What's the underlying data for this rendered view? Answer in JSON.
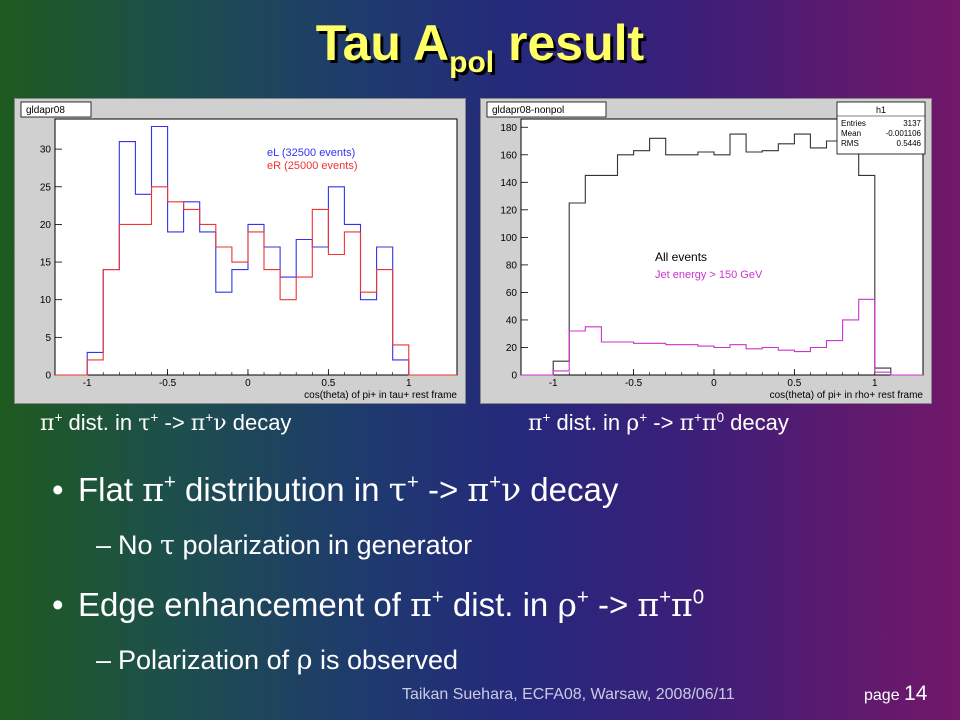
{
  "slide": {
    "title_main": "Tau A",
    "title_sub": "pol",
    "title_end": " result",
    "footer": "Taikan Suehara, ECFA08, Warsaw, 2008/06/11",
    "page_label": "page",
    "page_number": "14"
  },
  "captions": {
    "left": {
      "a": "π",
      "b": "+",
      "c": " dist. in ",
      "d": "τ",
      "e": "+",
      "f": " -> ",
      "g": "π",
      "h": "+",
      "i": "ν",
      "j": " decay"
    },
    "right": {
      "a": "π",
      "b": "+",
      "c": " dist. in ",
      "d": "ρ",
      "e": "+",
      "f": " -> ",
      "g": "π",
      "h": "+",
      "i": "π",
      "j": "0",
      "k": " decay"
    }
  },
  "bullets": [
    {
      "a": "•",
      "b": "Flat ",
      "c": "π",
      "d": "+",
      "e": " distribution in ",
      "f": "τ",
      "g": "+",
      "h": " -> ",
      "i": "π",
      "j": "+",
      "k": "ν",
      "l": " decay"
    },
    {
      "a": "–",
      "b": "No ",
      "c": "τ",
      "d": " polarization in generator"
    },
    {
      "a": "•",
      "b": "Edge enhancement of ",
      "c": "π",
      "d": "+",
      "e": " dist. in ",
      "f": "ρ",
      "g": "+",
      "h": " -> ",
      "i": "π",
      "j": "+",
      "k": "π",
      "l": "0"
    },
    {
      "a": "–",
      "b": "Polarization of ",
      "c": "ρ",
      "d": " is observed"
    }
  ],
  "chart_data": [
    {
      "type": "line",
      "step": true,
      "panel_label": "gldapr08",
      "xlabel": "cos(theta) of pi+ in tau+ rest frame",
      "xlim": [
        -1.2,
        1.3
      ],
      "ylim": [
        0,
        34
      ],
      "xticks": [
        -1,
        -0.5,
        0,
        0.5,
        1
      ],
      "xtick_labels": [
        "-1",
        "-0.5",
        "0",
        "0.5",
        "1"
      ],
      "yticks": [
        0,
        5,
        10,
        15,
        20,
        25,
        30
      ],
      "ytick_labels": [
        "0",
        "5",
        "10",
        "15",
        "20",
        "25",
        "30"
      ],
      "bin_edges": [
        -1.2,
        -1.1,
        -1.0,
        -0.9,
        -0.8,
        -0.7,
        -0.6,
        -0.5,
        -0.4,
        -0.3,
        -0.2,
        -0.1,
        0.0,
        0.1,
        0.2,
        0.3,
        0.4,
        0.5,
        0.6,
        0.7,
        0.8,
        0.9,
        1.0,
        1.1,
        1.2,
        1.3
      ],
      "legend": [
        {
          "label": "eL (32500 events)",
          "color": "#3333ee"
        },
        {
          "label": "eR (25000 events)",
          "color": "#ee3333"
        }
      ],
      "series": [
        {
          "name": "eL (32500 events)",
          "color": "#3333ee",
          "values": [
            0,
            0,
            3,
            14,
            31,
            24,
            33,
            19,
            23,
            19,
            11,
            14,
            20,
            17,
            13,
            18,
            17,
            25,
            20,
            10,
            17,
            2,
            0,
            0,
            0
          ]
        },
        {
          "name": "eR (25000 events)",
          "color": "#ee3333",
          "values": [
            0,
            0,
            2,
            14,
            20,
            20,
            25,
            23,
            22,
            20,
            17,
            15,
            19,
            14,
            10,
            13,
            22,
            16,
            19,
            11,
            14,
            4,
            0,
            0,
            0
          ]
        }
      ]
    },
    {
      "type": "line",
      "step": true,
      "panel_label": "gldapr08-nonpol",
      "xlabel": "cos(theta) of pi+ in rho+ rest frame",
      "xlim": [
        -1.2,
        1.3
      ],
      "ylim": [
        0,
        186
      ],
      "xticks": [
        -1,
        -0.5,
        0,
        0.5,
        1
      ],
      "xtick_labels": [
        "-1",
        "-0.5",
        "0",
        "0.5",
        "1"
      ],
      "yticks": [
        0,
        20,
        40,
        60,
        80,
        100,
        120,
        140,
        160,
        180
      ],
      "ytick_labels": [
        "0",
        "20",
        "40",
        "60",
        "80",
        "100",
        "120",
        "140",
        "160",
        "180"
      ],
      "bin_edges": [
        -1.2,
        -1.1,
        -1.0,
        -0.9,
        -0.8,
        -0.7,
        -0.6,
        -0.5,
        -0.4,
        -0.3,
        -0.2,
        -0.1,
        0.0,
        0.1,
        0.2,
        0.3,
        0.4,
        0.5,
        0.6,
        0.7,
        0.8,
        0.9,
        1.0,
        1.1,
        1.2,
        1.3
      ],
      "stats": {
        "title": "h1",
        "rows": [
          [
            "Entries",
            "3137"
          ],
          [
            "Mean",
            "-0.001106"
          ],
          [
            "RMS",
            "0.5446"
          ]
        ]
      },
      "legend": [
        {
          "label": "All events",
          "color": "#000000"
        },
        {
          "label": "Jet energy > 150 GeV",
          "color": "#cc33cc"
        }
      ],
      "series": [
        {
          "name": "All events",
          "color": "#333333",
          "values": [
            0,
            0,
            10,
            125,
            145,
            145,
            160,
            163,
            172,
            160,
            160,
            162,
            160,
            175,
            162,
            163,
            168,
            175,
            165,
            170,
            163,
            145,
            5,
            0,
            0
          ]
        },
        {
          "name": "Jet energy > 150 GeV",
          "color": "#cc33cc",
          "values": [
            0,
            0,
            3,
            32,
            35,
            24,
            24,
            23,
            23,
            22,
            22,
            21,
            20,
            22,
            19,
            20,
            18,
            17,
            20,
            25,
            40,
            55,
            2,
            0,
            0
          ]
        }
      ]
    }
  ]
}
